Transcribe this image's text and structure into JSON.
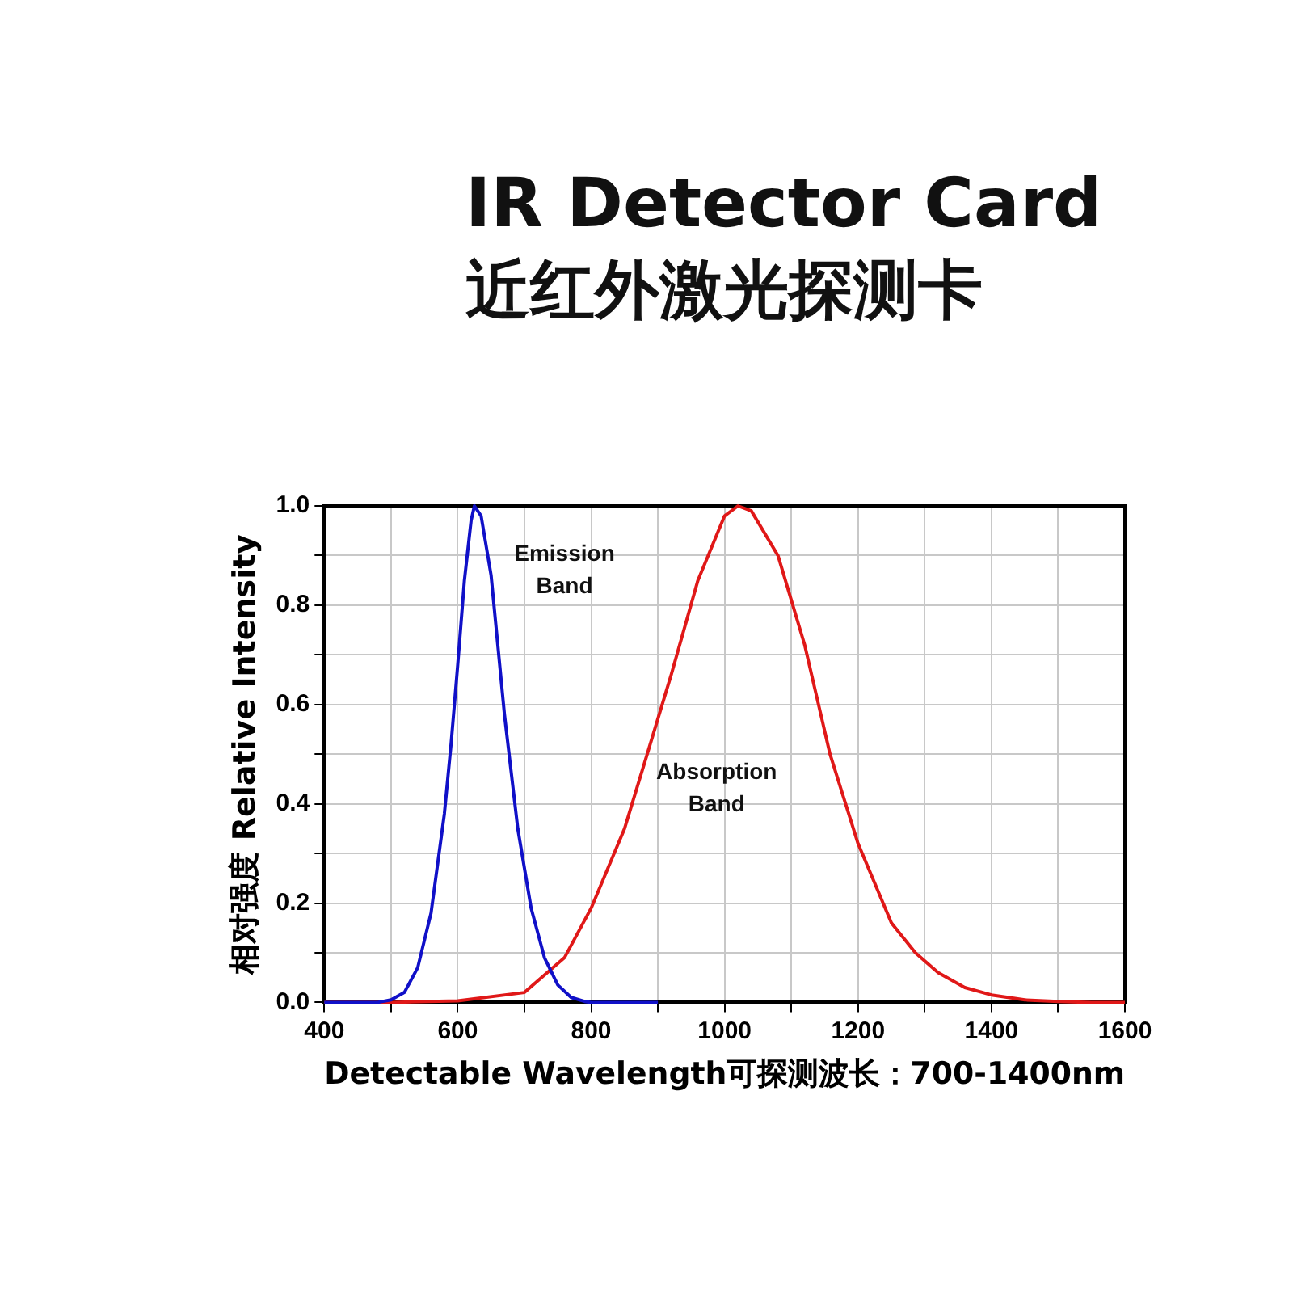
{
  "chart_data": {
    "type": "line",
    "title": "IR Detector Card",
    "subtitle": "近红外激光探测卡",
    "xlabel": "Detectable Wavelength可探测波长：700-1400nm",
    "ylabel": "相对强度 Relative Intensity",
    "series": [
      {
        "color": "#1010c8",
        "x": [
          400,
          480,
          500,
          520,
          540,
          560,
          580,
          590,
          600,
          610,
          620,
          625,
          635,
          650,
          670,
          690,
          710,
          730,
          750,
          770,
          790,
          800,
          900
        ],
        "values": [
          0,
          0,
          0.005,
          0.02,
          0.07,
          0.18,
          0.38,
          0.52,
          0.68,
          0.85,
          0.97,
          1.0,
          0.98,
          0.86,
          0.58,
          0.35,
          0.19,
          0.09,
          0.035,
          0.01,
          0.002,
          0,
          0
        ]
      },
      {
        "color": "#e01818",
        "x": [
          400,
          500,
          600,
          700,
          760,
          800,
          850,
          884,
          920,
          960,
          1000,
          1020,
          1040,
          1080,
          1120,
          1158,
          1200,
          1250,
          1286,
          1320,
          1360,
          1400,
          1450,
          1500,
          1550,
          1600
        ],
        "values": [
          0,
          0,
          0.003,
          0.02,
          0.09,
          0.19,
          0.35,
          0.5,
          0.66,
          0.85,
          0.98,
          1.0,
          0.99,
          0.9,
          0.72,
          0.5,
          0.32,
          0.16,
          0.1,
          0.06,
          0.03,
          0.015,
          0.005,
          0.002,
          0,
          0
        ]
      }
    ],
    "annotations": [
      "Emission\nBand",
      "Absorption\nBand"
    ],
    "xlim": [
      400,
      1600
    ],
    "xticks": [
      400,
      {
        "value": 500,
        "label": null
      },
      600,
      {
        "value": 700,
        "label": null
      },
      800,
      {
        "value": 900,
        "label": null
      },
      1000,
      {
        "value": 1100,
        "label": null
      },
      1200,
      {
        "value": 1300,
        "label": null
      },
      1400,
      {
        "value": 1500,
        "label": null
      },
      1600
    ],
    "ylim": [
      0,
      1
    ],
    "yticks": [
      {
        "value": 0,
        "label": "0.0"
      },
      {
        "value": 0.1,
        "label": null
      },
      {
        "value": 0.2,
        "label": "0.2"
      },
      {
        "value": 0.3,
        "label": null
      },
      {
        "value": 0.4,
        "label": "0.4"
      },
      {
        "value": 0.5,
        "label": null
      },
      {
        "value": 0.6,
        "label": "0.6"
      },
      {
        "value": 0.7,
        "label": null
      },
      {
        "value": 0.8,
        "label": "0.8"
      },
      {
        "value": 0.9,
        "label": null
      },
      {
        "value": 1,
        "label": "1.0"
      }
    ],
    "grid": true,
    "legend": false,
    "marker": "none",
    "line_style": "solid"
  }
}
